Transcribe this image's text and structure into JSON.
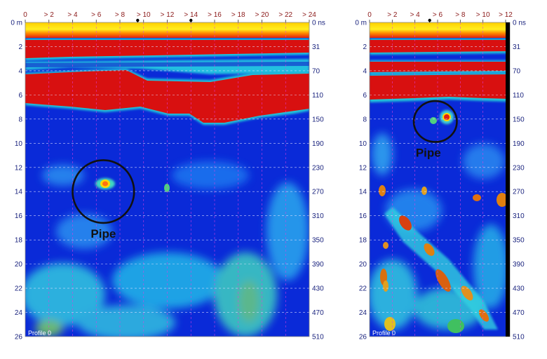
{
  "chart_data": [
    {
      "type": "heatmap",
      "x_ticks": [
        "0",
        "> 2",
        "> 4",
        "> 6",
        "> 8",
        "> 10",
        "> 12",
        "> 14",
        "> 16",
        "> 18",
        "> 20",
        "> 22",
        "> 24"
      ],
      "x_range": [
        0,
        24
      ],
      "depth_ticks": [
        "0 m",
        "2",
        "4",
        "6",
        "8",
        "10",
        "12",
        "14",
        "16",
        "18",
        "20",
        "22",
        "24",
        "26"
      ],
      "depth_range": [
        0,
        26
      ],
      "time_ticks": [
        "0 ns",
        "31",
        "70",
        "110",
        "150",
        "190",
        "230",
        "270",
        "310",
        "350",
        "390",
        "430",
        "470",
        "510"
      ],
      "markers_x": [
        9.5,
        14
      ],
      "profile_label": "Profile 0",
      "annotation": {
        "text": "Pipe",
        "x": 6.6,
        "depth": 14,
        "radius_x": 2.6
      }
    },
    {
      "type": "heatmap",
      "x_ticks": [
        "0",
        "> 2",
        "> 4",
        "> 6",
        "> 8",
        "> 10",
        "> 12"
      ],
      "x_range": [
        0,
        12
      ],
      "depth_ticks": [
        "0 m",
        "2",
        "4",
        "6",
        "8",
        "10",
        "12",
        "14",
        "16",
        "18",
        "20",
        "22",
        "24",
        "26"
      ],
      "depth_range": [
        0,
        26
      ],
      "time_ticks": [
        "0 ns",
        "31",
        "70",
        "110",
        "150",
        "190",
        "230",
        "270",
        "310",
        "350",
        "390",
        "430",
        "470",
        "510"
      ],
      "markers_x": [
        5.3
      ],
      "profile_label": "Profile 0",
      "annotation": {
        "text": "Pipe",
        "x": 5.8,
        "depth": 8.2,
        "radius_x": 1.9
      }
    }
  ],
  "colors": {
    "background": "#0a2ad8",
    "reflector": "#d81010",
    "tick_top": "#8b1a1a",
    "tick_side": "#1a237e"
  }
}
